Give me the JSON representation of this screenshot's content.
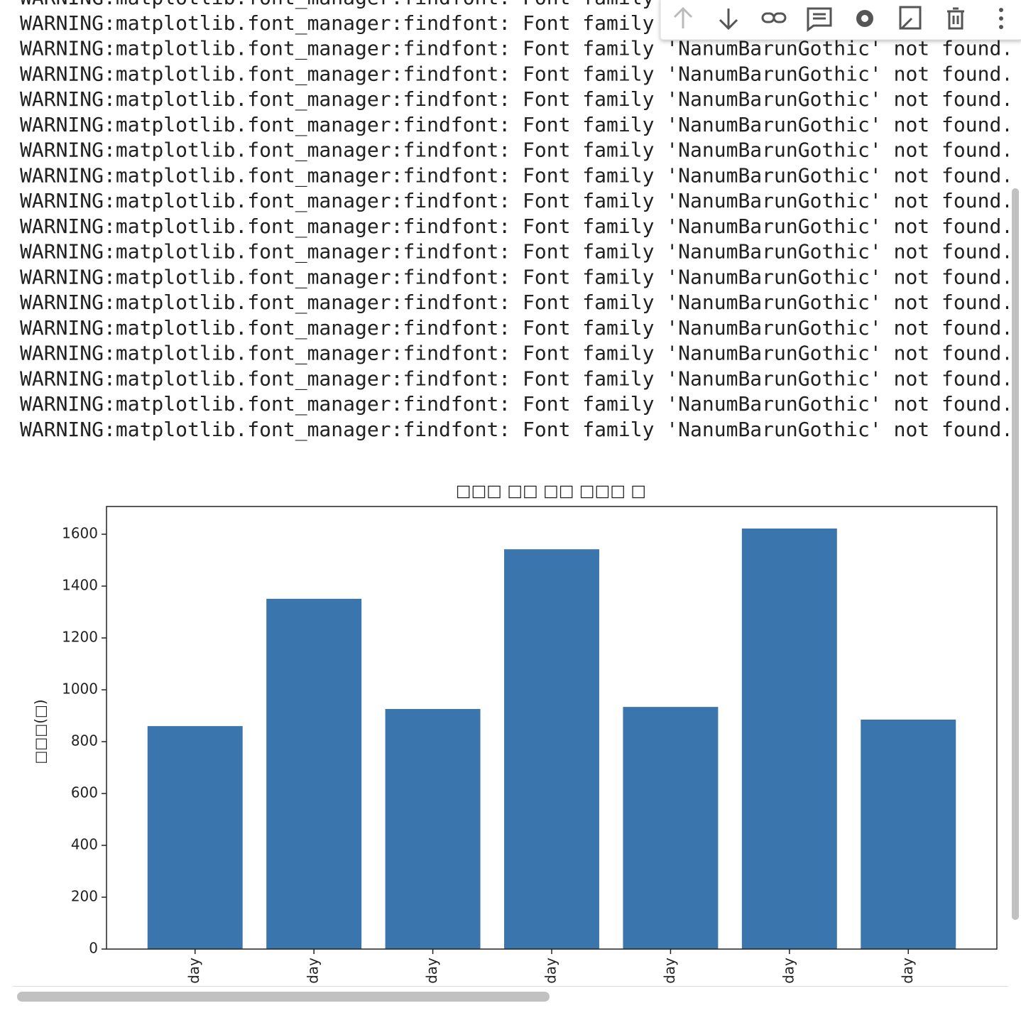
{
  "log": {
    "lines": [
      "WARNING:matplotlib.font_manager:findfont: Font family 'NanumBarunGothic' not found.",
      "WARNING:matplotlib.font_manager:findfont: Font family 'NanumBarunGothic' not found.",
      "WARNING:matplotlib.font_manager:findfont: Font family 'NanumBarunGothic' not found.",
      "WARNING:matplotlib.font_manager:findfont: Font family 'NanumBarunGothic' not found.",
      "WARNING:matplotlib.font_manager:findfont: Font family 'NanumBarunGothic' not found.",
      "WARNING:matplotlib.font_manager:findfont: Font family 'NanumBarunGothic' not found.",
      "WARNING:matplotlib.font_manager:findfont: Font family 'NanumBarunGothic' not found.",
      "WARNING:matplotlib.font_manager:findfont: Font family 'NanumBarunGothic' not found.",
      "WARNING:matplotlib.font_manager:findfont: Font family 'NanumBarunGothic' not found.",
      "WARNING:matplotlib.font_manager:findfont: Font family 'NanumBarunGothic' not found.",
      "WARNING:matplotlib.font_manager:findfont: Font family 'NanumBarunGothic' not found.",
      "WARNING:matplotlib.font_manager:findfont: Font family 'NanumBarunGothic' not found.",
      "WARNING:matplotlib.font_manager:findfont: Font family 'NanumBarunGothic' not found.",
      "WARNING:matplotlib.font_manager:findfont: Font family 'NanumBarunGothic' not found.",
      "WARNING:matplotlib.font_manager:findfont: Font family 'NanumBarunGothic' not found.",
      "WARNING:matplotlib.font_manager:findfont: Font family 'NanumBarunGothic' not found.",
      "WARNING:matplotlib.font_manager:findfont: Font family 'NanumBarunGothic' not found.",
      "WARNING:matplotlib.font_manager:findfont: Font family 'NanumBarunGothic' not found."
    ]
  },
  "chart_data": {
    "type": "bar",
    "title": "□□□ □□ □□ □□□ □",
    "y_label": "□□□(□)",
    "categories": [
      "day",
      "day",
      "day",
      "day",
      "day",
      "day",
      "day"
    ],
    "values": [
      860,
      1351,
      926,
      1542,
      934,
      1622,
      885
    ],
    "color": "#3a75ae",
    "ylim": [
      0,
      1707
    ],
    "yticks": [
      0,
      200,
      400,
      600,
      800,
      1000,
      1200,
      1400,
      1600
    ],
    "grid": false
  }
}
